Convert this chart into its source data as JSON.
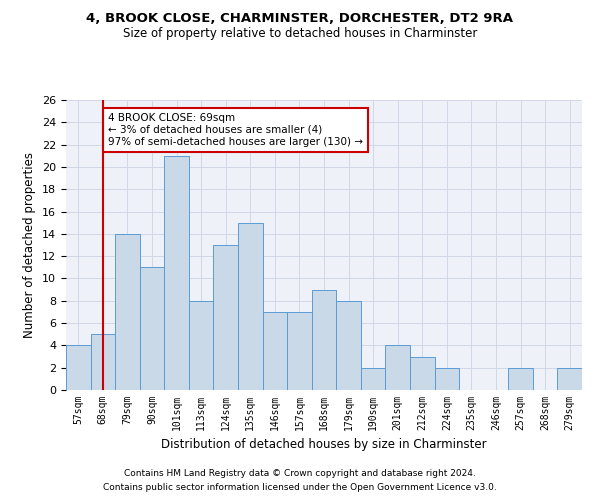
{
  "title1": "4, BROOK CLOSE, CHARMINSTER, DORCHESTER, DT2 9RA",
  "title2": "Size of property relative to detached houses in Charminster",
  "xlabel": "Distribution of detached houses by size in Charminster",
  "ylabel": "Number of detached properties",
  "categories": [
    "57sqm",
    "68sqm",
    "79sqm",
    "90sqm",
    "101sqm",
    "113sqm",
    "124sqm",
    "135sqm",
    "146sqm",
    "157sqm",
    "168sqm",
    "179sqm",
    "190sqm",
    "201sqm",
    "212sqm",
    "224sqm",
    "235sqm",
    "246sqm",
    "257sqm",
    "268sqm",
    "279sqm"
  ],
  "values": [
    4,
    5,
    14,
    11,
    21,
    8,
    13,
    15,
    7,
    7,
    9,
    8,
    2,
    4,
    3,
    2,
    0,
    0,
    2,
    0,
    2
  ],
  "bar_color": "#c9d9e8",
  "bar_edge_color": "#5b9bd5",
  "highlight_x": "68sqm",
  "highlight_line_color": "#cc0000",
  "annotation_text": "4 BROOK CLOSE: 69sqm\n← 3% of detached houses are smaller (4)\n97% of semi-detached houses are larger (130) →",
  "annotation_box_color": "#ffffff",
  "annotation_box_edge": "#cc0000",
  "ylim": [
    0,
    26
  ],
  "yticks": [
    0,
    2,
    4,
    6,
    8,
    10,
    12,
    14,
    16,
    18,
    20,
    22,
    24,
    26
  ],
  "footnote1": "Contains HM Land Registry data © Crown copyright and database right 2024.",
  "footnote2": "Contains public sector information licensed under the Open Government Licence v3.0.",
  "grid_color": "#d0d8e8",
  "background_color": "#eef2f8",
  "fig_width": 6.0,
  "fig_height": 5.0,
  "dpi": 100
}
